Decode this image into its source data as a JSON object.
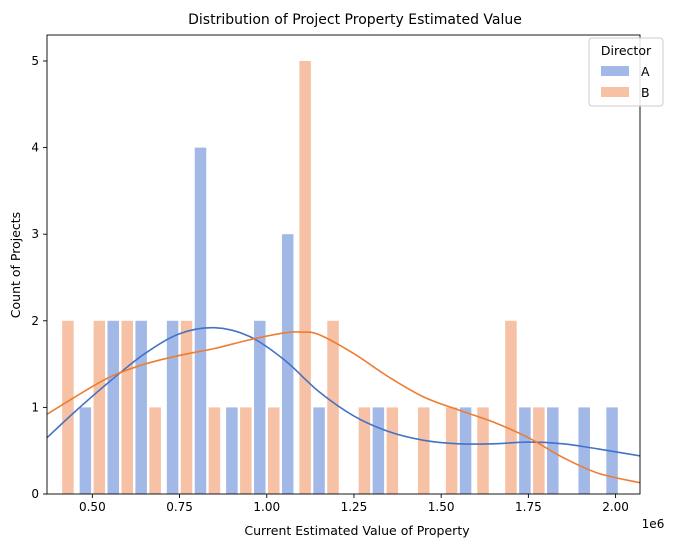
{
  "chart_data": {
    "type": "bar",
    "title": "Distribution of Project Property Estimated Value",
    "xlabel": "Current Estimated Value of Property",
    "ylabel": "Count of Projects",
    "x_offset_label": "1e6",
    "xlim": [
      0.37,
      2.07
    ],
    "ylim": [
      0,
      5.3
    ],
    "x_ticks": [
      0.5,
      0.75,
      1.0,
      1.25,
      1.5,
      1.75,
      2.0
    ],
    "x_tick_labels": [
      "0.50",
      "0.75",
      "1.00",
      "1.25",
      "1.50",
      "1.75",
      "2.00"
    ],
    "y_ticks": [
      0,
      1,
      2,
      3,
      4,
      5
    ],
    "y_tick_labels": [
      "0",
      "1",
      "2",
      "3",
      "4",
      "5"
    ],
    "legend": {
      "title": "Director",
      "position": "top-right"
    },
    "series": [
      {
        "name": "A",
        "color": "#a2b9e8",
        "kde_color": "#4472c4",
        "bins": [
          {
            "x": 0.48,
            "count": 1
          },
          {
            "x": 0.56,
            "count": 2
          },
          {
            "x": 0.64,
            "count": 2
          },
          {
            "x": 0.73,
            "count": 2
          },
          {
            "x": 0.81,
            "count": 4
          },
          {
            "x": 0.9,
            "count": 1
          },
          {
            "x": 0.98,
            "count": 2
          },
          {
            "x": 1.06,
            "count": 3
          },
          {
            "x": 1.15,
            "count": 1
          },
          {
            "x": 1.32,
            "count": 1
          },
          {
            "x": 1.57,
            "count": 1
          },
          {
            "x": 1.74,
            "count": 1
          },
          {
            "x": 1.82,
            "count": 1
          },
          {
            "x": 1.91,
            "count": 1
          },
          {
            "x": 1.99,
            "count": 1
          }
        ],
        "kde": [
          [
            0.37,
            0.65
          ],
          [
            0.45,
            0.95
          ],
          [
            0.55,
            1.3
          ],
          [
            0.65,
            1.62
          ],
          [
            0.75,
            1.85
          ],
          [
            0.85,
            1.92
          ],
          [
            0.95,
            1.82
          ],
          [
            1.05,
            1.55
          ],
          [
            1.15,
            1.18
          ],
          [
            1.25,
            0.9
          ],
          [
            1.35,
            0.72
          ],
          [
            1.45,
            0.62
          ],
          [
            1.55,
            0.58
          ],
          [
            1.65,
            0.58
          ],
          [
            1.75,
            0.6
          ],
          [
            1.85,
            0.58
          ],
          [
            1.95,
            0.52
          ],
          [
            2.07,
            0.44
          ]
        ]
      },
      {
        "name": "B",
        "color": "#f6c1a4",
        "kde_color": "#ed7d31",
        "bins": [
          {
            "x": 0.43,
            "count": 2
          },
          {
            "x": 0.52,
            "count": 2
          },
          {
            "x": 0.6,
            "count": 2
          },
          {
            "x": 0.68,
            "count": 1
          },
          {
            "x": 0.77,
            "count": 2
          },
          {
            "x": 0.85,
            "count": 1
          },
          {
            "x": 0.94,
            "count": 1
          },
          {
            "x": 1.02,
            "count": 1
          },
          {
            "x": 1.11,
            "count": 5
          },
          {
            "x": 1.19,
            "count": 2
          },
          {
            "x": 1.28,
            "count": 1
          },
          {
            "x": 1.36,
            "count": 1
          },
          {
            "x": 1.45,
            "count": 1
          },
          {
            "x": 1.53,
            "count": 1
          },
          {
            "x": 1.62,
            "count": 1
          },
          {
            "x": 1.7,
            "count": 2
          },
          {
            "x": 1.78,
            "count": 1
          }
        ],
        "kde": [
          [
            0.37,
            0.92
          ],
          [
            0.45,
            1.12
          ],
          [
            0.55,
            1.35
          ],
          [
            0.65,
            1.5
          ],
          [
            0.75,
            1.6
          ],
          [
            0.85,
            1.68
          ],
          [
            0.95,
            1.78
          ],
          [
            1.05,
            1.86
          ],
          [
            1.1,
            1.87
          ],
          [
            1.15,
            1.84
          ],
          [
            1.25,
            1.62
          ],
          [
            1.35,
            1.35
          ],
          [
            1.45,
            1.12
          ],
          [
            1.55,
            0.97
          ],
          [
            1.65,
            0.83
          ],
          [
            1.75,
            0.65
          ],
          [
            1.85,
            0.42
          ],
          [
            1.95,
            0.24
          ],
          [
            2.07,
            0.13
          ]
        ]
      }
    ]
  }
}
